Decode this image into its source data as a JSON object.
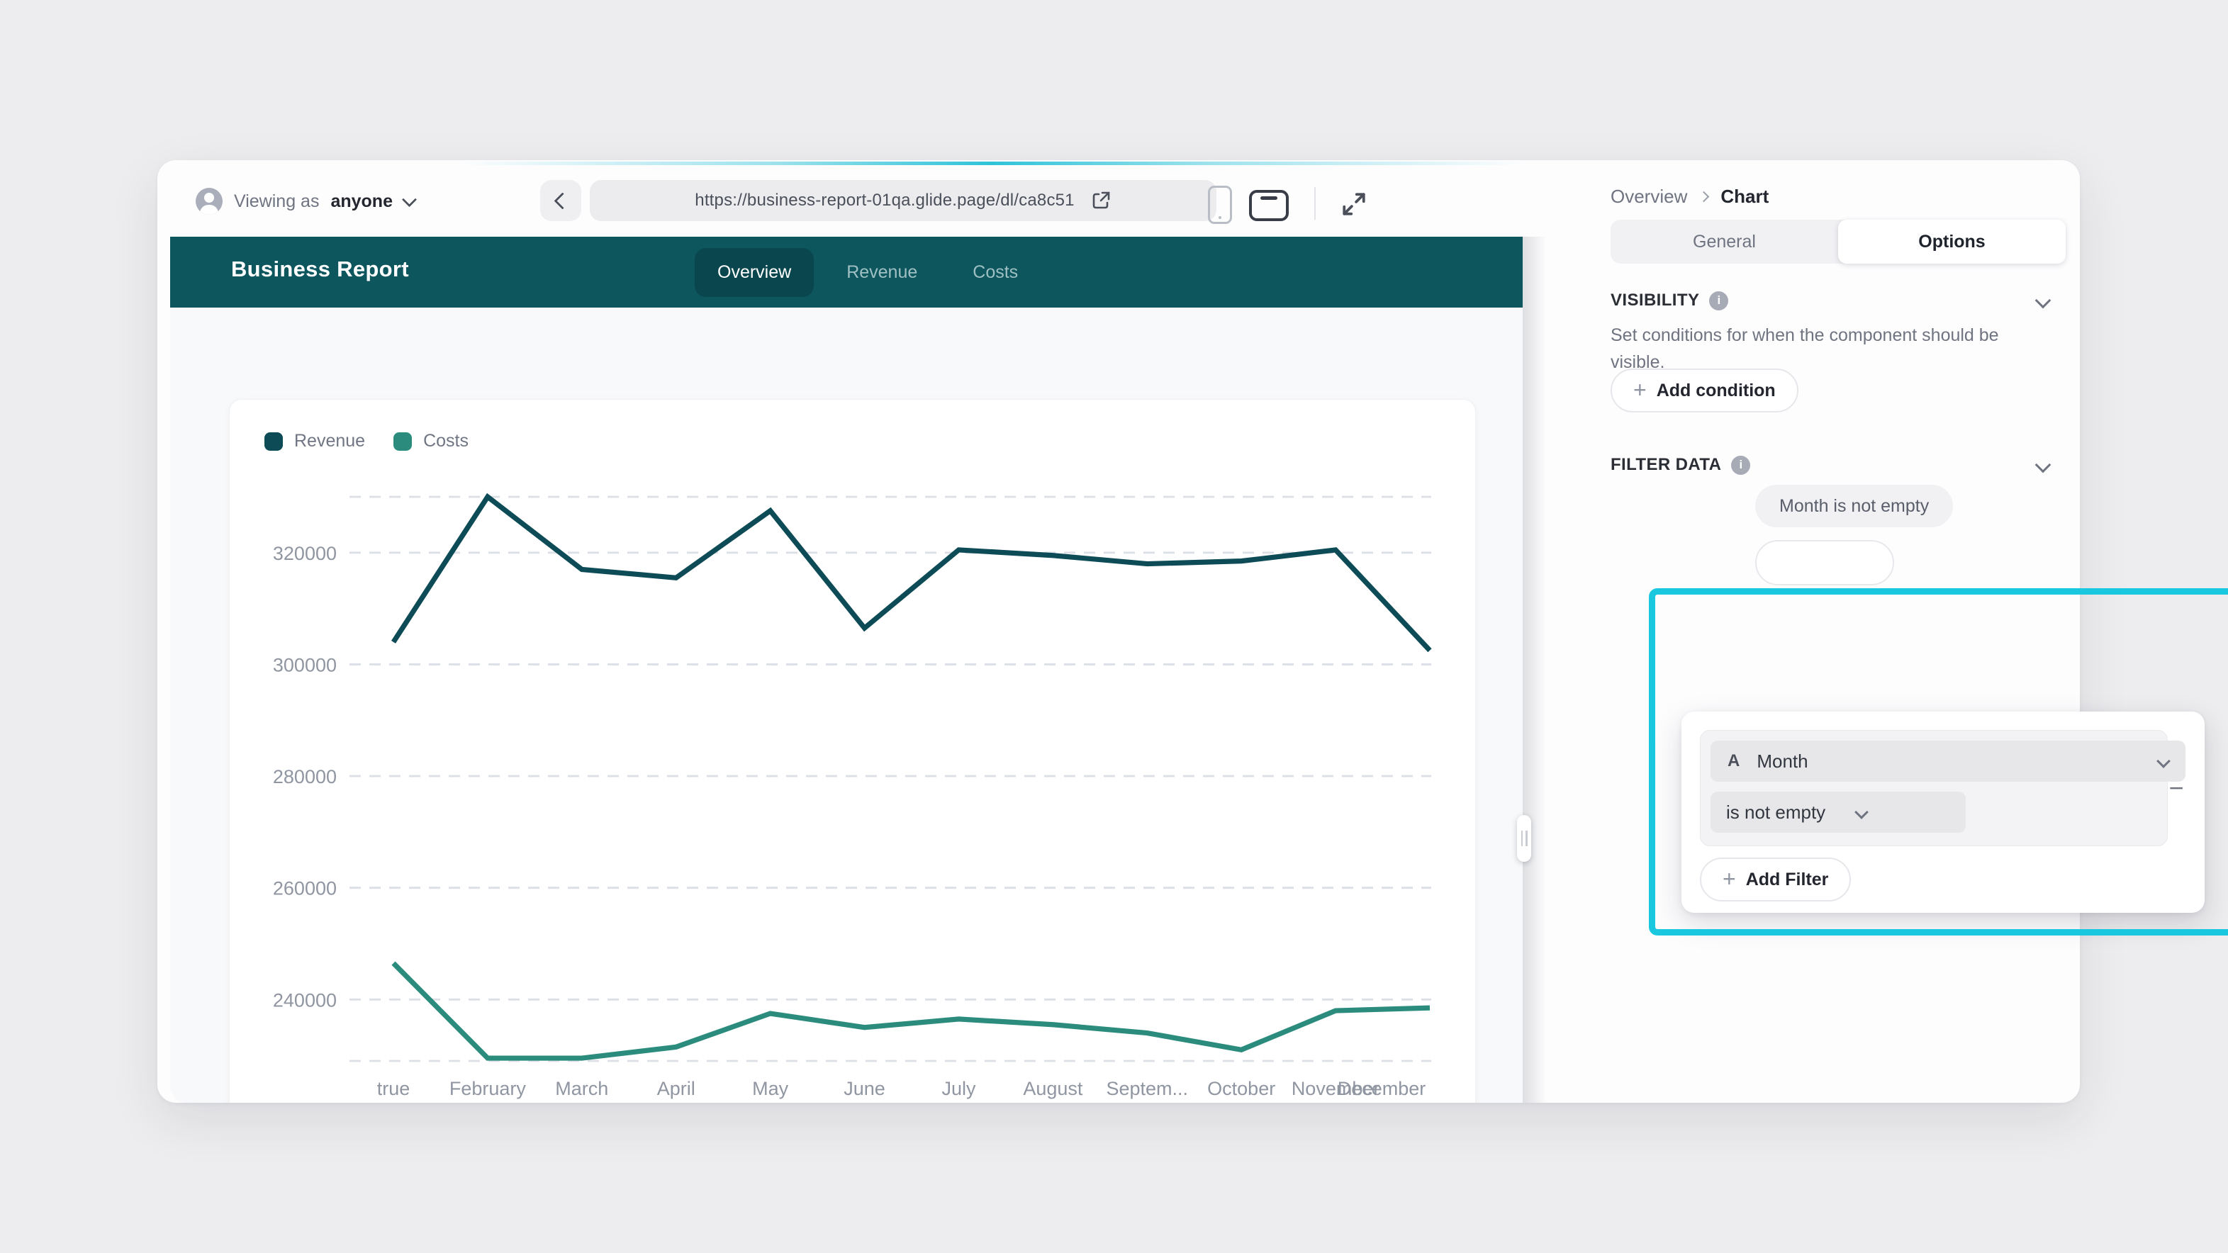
{
  "toolbar": {
    "viewing_as_label": "Viewing as",
    "viewing_as_value": "anyone",
    "url": "https://business-report-01qa.glide.page/dl/ca8c51"
  },
  "app": {
    "title": "Business Report",
    "tabs": [
      {
        "label": "Overview",
        "active": true
      },
      {
        "label": "Revenue",
        "active": false
      },
      {
        "label": "Costs",
        "active": false
      }
    ]
  },
  "chart_data": {
    "type": "line",
    "title": "",
    "xlabel": "",
    "ylabel": "",
    "categories": [
      "true",
      "February",
      "March",
      "April",
      "May",
      "June",
      "July",
      "August",
      "Septem...",
      "October",
      "November",
      "December"
    ],
    "series": [
      {
        "name": "Revenue",
        "color": "#0d4b57",
        "values": [
          304000,
          330000,
          317000,
          315500,
          327500,
          306500,
          320500,
          319500,
          318000,
          318500,
          320500,
          302500
        ]
      },
      {
        "name": "Costs",
        "color": "#2b8c7e",
        "values": [
          246500,
          229500,
          229500,
          231500,
          237500,
          235000,
          236500,
          235500,
          234000,
          231000,
          238000,
          238500
        ]
      }
    ],
    "yticks": [
      240000,
      260000,
      280000,
      300000,
      320000
    ],
    "ylim": [
      229000,
      330000
    ],
    "grid": "horizontal-dashed",
    "legend_position": "top-left"
  },
  "panel": {
    "breadcrumb": {
      "parent": "Overview",
      "current": "Chart"
    },
    "tabs": {
      "general": "General",
      "options": "Options",
      "active": "Options"
    },
    "visibility": {
      "title": "VISIBILITY",
      "description": "Set conditions for when the component should be visible.",
      "add_button": "Add condition"
    },
    "filter": {
      "title": "FILTER DATA",
      "chip": "Month is not empty",
      "popup": {
        "column_type_glyph": "A",
        "column": "Month",
        "operator": "is not empty",
        "add_button": "Add Filter",
        "remove_glyph": "−"
      }
    }
  },
  "glyphs": {
    "plus": "+",
    "info": "i"
  },
  "colors": {
    "header_teal": "#0d565e",
    "header_tab_active": "#0a464e",
    "revenue": "#0d4b57",
    "costs": "#2b8c7e",
    "highlight_cyan": "#19c8df",
    "grid_line": "#dcdfe5",
    "axis_label": "#9096a1"
  }
}
